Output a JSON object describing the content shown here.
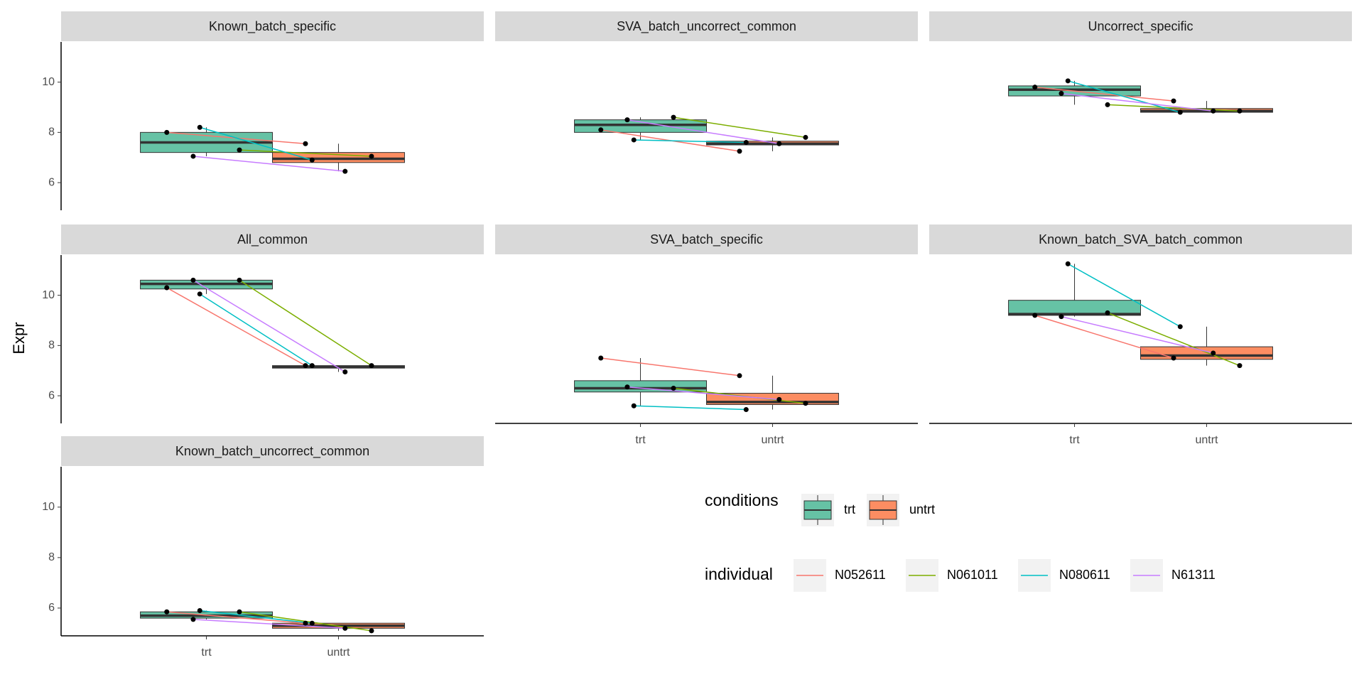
{
  "chart_data": {
    "type": "box",
    "ylabel": "Expr",
    "categories": [
      "trt",
      "untrt"
    ],
    "ylim": [
      4.9,
      11.6
    ],
    "yticks": [
      6,
      8,
      10
    ],
    "box_colors": [
      "#66c2a5",
      "#fc8d62"
    ],
    "fill_legend_title": "conditions",
    "color_legend_title": "individual",
    "series": [
      {
        "name": "N052611",
        "color": "#f8766d"
      },
      {
        "name": "N061011",
        "color": "#7cae00"
      },
      {
        "name": "N080611",
        "color": "#00bfc4"
      },
      {
        "name": "N61311",
        "color": "#c77cff"
      }
    ],
    "facets": [
      {
        "title": "Known_batch_specific",
        "boxes": [
          {
            "min": 7.05,
            "q1": 7.2,
            "median": 7.6,
            "q3": 8.0,
            "max": 8.2
          },
          {
            "min": 6.45,
            "q1": 6.8,
            "median": 6.95,
            "q3": 7.2,
            "max": 7.55
          }
        ],
        "values": [
          [
            8.0,
            7.55
          ],
          [
            7.3,
            7.05
          ],
          [
            8.2,
            6.9
          ],
          [
            7.05,
            6.45
          ]
        ]
      },
      {
        "title": "SVA_batch_uncorrect_common",
        "boxes": [
          {
            "min": 7.7,
            "q1": 8.0,
            "median": 8.3,
            "q3": 8.5,
            "max": 8.6
          },
          {
            "min": 7.25,
            "q1": 7.5,
            "median": 7.55,
            "q3": 7.65,
            "max": 7.8
          }
        ],
        "values": [
          [
            8.1,
            7.25
          ],
          [
            8.6,
            7.8
          ],
          [
            7.7,
            7.6
          ],
          [
            8.5,
            7.55
          ]
        ]
      },
      {
        "title": "Uncorrect_specific",
        "boxes": [
          {
            "min": 9.1,
            "q1": 9.45,
            "median": 9.7,
            "q3": 9.85,
            "max": 10.05
          },
          {
            "min": 8.8,
            "q1": 8.8,
            "median": 8.85,
            "q3": 8.95,
            "max": 9.25
          }
        ],
        "values": [
          [
            9.8,
            9.25
          ],
          [
            9.1,
            8.85
          ],
          [
            10.05,
            8.8
          ],
          [
            9.55,
            8.85
          ]
        ]
      },
      {
        "title": "All_common",
        "boxes": [
          {
            "min": 10.05,
            "q1": 10.25,
            "median": 10.45,
            "q3": 10.6,
            "max": 10.6
          },
          {
            "min": 6.95,
            "q1": 7.1,
            "median": 7.15,
            "q3": 7.2,
            "max": 7.2
          }
        ],
        "values": [
          [
            10.3,
            7.2
          ],
          [
            10.6,
            7.2
          ],
          [
            10.05,
            7.2
          ],
          [
            10.6,
            6.95
          ]
        ]
      },
      {
        "title": "SVA_batch_specific",
        "boxes": [
          {
            "min": 5.6,
            "q1": 6.15,
            "median": 6.3,
            "q3": 6.6,
            "max": 7.5
          },
          {
            "min": 5.45,
            "q1": 5.65,
            "median": 5.75,
            "q3": 6.1,
            "max": 6.8
          }
        ],
        "values": [
          [
            7.5,
            6.8
          ],
          [
            6.3,
            5.7
          ],
          [
            5.6,
            5.45
          ],
          [
            6.35,
            5.85
          ]
        ]
      },
      {
        "title": "Known_batch_SVA_batch_common",
        "boxes": [
          {
            "min": 9.15,
            "q1": 9.2,
            "median": 9.25,
            "q3": 9.8,
            "max": 11.25
          },
          {
            "min": 7.2,
            "q1": 7.45,
            "median": 7.6,
            "q3": 7.95,
            "max": 8.75
          }
        ],
        "values": [
          [
            9.2,
            7.5
          ],
          [
            9.3,
            7.2
          ],
          [
            11.25,
            8.75
          ],
          [
            9.15,
            7.7
          ]
        ]
      },
      {
        "title": "Known_batch_uncorrect_common",
        "boxes": [
          {
            "min": 5.55,
            "q1": 5.6,
            "median": 5.7,
            "q3": 5.85,
            "max": 5.9
          },
          {
            "min": 5.1,
            "q1": 5.2,
            "median": 5.3,
            "q3": 5.4,
            "max": 5.4
          }
        ],
        "values": [
          [
            5.85,
            5.4
          ],
          [
            5.85,
            5.1
          ],
          [
            5.9,
            5.4
          ],
          [
            5.55,
            5.2
          ]
        ]
      }
    ]
  }
}
